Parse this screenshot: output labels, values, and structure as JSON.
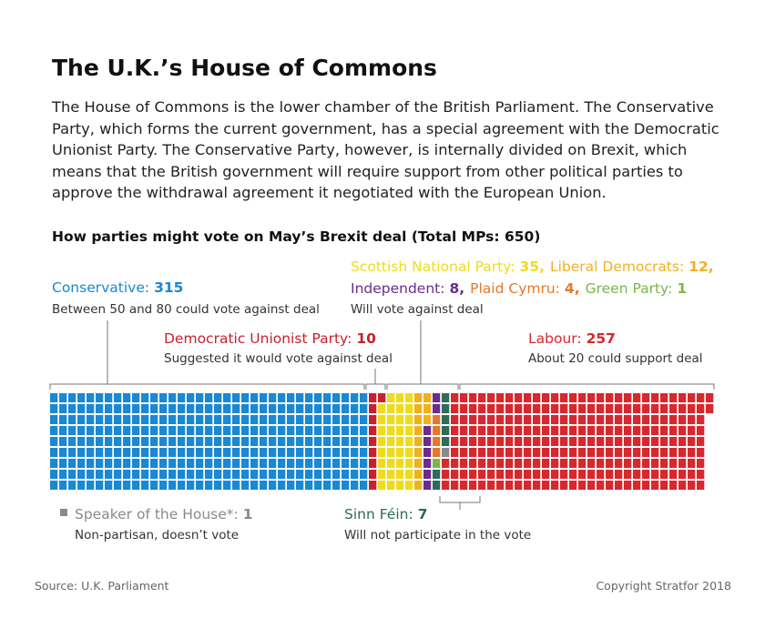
{
  "header": {
    "title": "The U.K.’s House of Commons",
    "intro": "The House of Commons is the lower chamber of the British Parliament. The Conservative Party, which forms the current government, has a special agreement with the Democratic Unionist Party. The Conservative Party, however, is internally divided on Brexit, which means that the British government will require support from other political parties to approve the withdrawal agreement it negotiated with the European Union."
  },
  "chart_data": {
    "type": "waffle",
    "title": "How parties might vote on May’s Brexit deal (Total MPs: 650)",
    "categories": [
      "Conservative:",
      "Democratic Unionist Party:",
      "Scottish National Party:",
      "Liberal Democrats:",
      "Independent:",
      "Plaid Cymru:",
      "Green Party:",
      "Sinn Féin:",
      "Speaker of the House*:",
      "Labour:"
    ],
    "values": [
      315,
      10,
      35,
      12,
      8,
      4,
      1,
      7,
      1,
      257
    ],
    "value_labels": [
      "315",
      "10",
      "35,",
      "12,",
      "8,",
      "4,",
      "1",
      "7",
      "1",
      "257"
    ],
    "colors": [
      "#1a88d2",
      "#c9202e",
      "#eedc1c",
      "#f2b01e",
      "#6b2c8e",
      "#e6782a",
      "#7cb649",
      "#2d6b5b",
      "#8a8a8a",
      "#d8282e"
    ],
    "annotations": [
      "Between 50 and 80 could vote against deal",
      "Suggested it would vote against deal",
      "Will vote against deal",
      "About 20 could support deal",
      "Non-partisan, doesn’t vote",
      "Will not participate in the vote"
    ]
  },
  "source": "Source: U.K. Parliament",
  "copyright": "Copyright Stratfor 2018"
}
